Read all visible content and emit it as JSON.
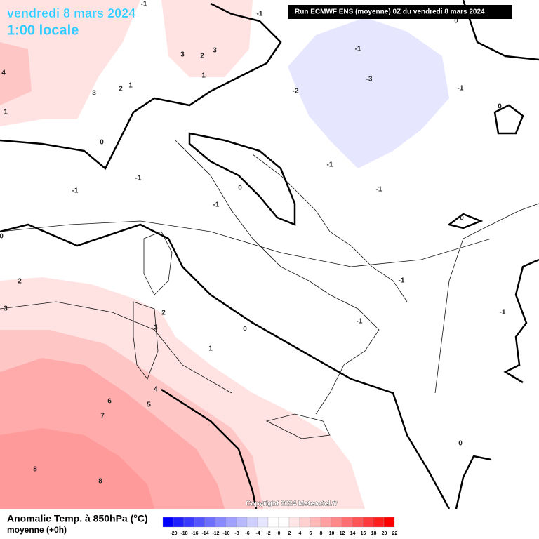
{
  "header": {
    "date": "vendredi 8 mars 2024",
    "time": "1:00 locale",
    "run_info": "Run ECMWF ENS (moyenne) 0Z du vendredi 8 mars 2024"
  },
  "map": {
    "contour_labels": [
      "-1",
      "-1",
      "0",
      "-1",
      "3",
      "2",
      "3",
      "1",
      "4",
      "3",
      "2",
      "1",
      "-2",
      "-3",
      "-1",
      "0",
      "1",
      "0",
      "-1",
      "-1",
      "-1",
      "0",
      "-1",
      "-1",
      "0",
      "0",
      "-1",
      "2",
      "-1",
      "3",
      "2",
      "-1",
      "3",
      "0",
      "1",
      "4",
      "6",
      "5",
      "7",
      "8",
      "8",
      "0"
    ]
  },
  "copyright": "Copyright 2024 Meteociel.fr",
  "legend": {
    "title": "Anomalie Temp. à 850hPa (°C)",
    "subtitle": "moyenne  (+0h)",
    "ticks": [
      -20,
      -18,
      -16,
      -14,
      -12,
      -10,
      -8,
      -6,
      -4,
      -2,
      0,
      2,
      4,
      6,
      8,
      10,
      12,
      14,
      16,
      18,
      20,
      22
    ],
    "colors": [
      "#0000ff",
      "#1f1fff",
      "#3a3aff",
      "#5555ff",
      "#6f6fff",
      "#8888ff",
      "#a0a0ff",
      "#b8b8ff",
      "#d0d0ff",
      "#e6e6ff",
      "#ffffff",
      "#ffffff",
      "#ffe6e6",
      "#ffd0d0",
      "#ffb8b8",
      "#ffa0a0",
      "#ff8888",
      "#ff6f6f",
      "#ff5555",
      "#ff3a3a",
      "#ff1f1f",
      "#ff0000"
    ]
  }
}
